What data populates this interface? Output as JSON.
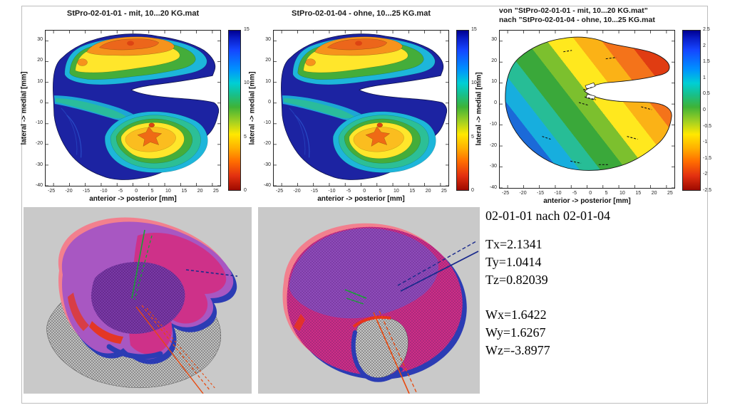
{
  "figure": {
    "plots": [
      {
        "title": "StPro-02-01-01 - mit, 10...20 KG.mat",
        "xlabel": "anterior -> posterior [mm]",
        "ylabel": "lateral -> medial [mm]",
        "x_ticks": [
          "-25",
          "-20",
          "-15",
          "-10",
          "-5",
          "0",
          "5",
          "10",
          "15",
          "20",
          "25"
        ],
        "y_ticks": [
          "30",
          "20",
          "10",
          "0",
          "-10",
          "-20",
          "-30",
          "-40"
        ],
        "cbar_ticks": [
          "15",
          "10",
          "5",
          "0"
        ]
      },
      {
        "title": "StPro-02-01-04 - ohne, 10...25 KG.mat",
        "xlabel": "anterior -> posterior [mm]",
        "ylabel": "lateral -> medial [mm]",
        "x_ticks": [
          "-25",
          "-20",
          "-15",
          "-10",
          "-5",
          "0",
          "5",
          "10",
          "15",
          "20",
          "25"
        ],
        "y_ticks": [
          "30",
          "20",
          "10",
          "0",
          "-10",
          "-20",
          "-30",
          "-40"
        ],
        "cbar_ticks": [
          "15",
          "10",
          "5",
          "0"
        ]
      },
      {
        "title_line1": "von ”StPro-02-01-01 - mit, 10...20 KG.mat”",
        "title_line2": "nach ”StPro-02-01-04 - ohne, 10...25 KG.mat",
        "xlabel": "anterior -> posterior [mm]",
        "ylabel": "lateral -> medial [mm]",
        "x_ticks": [
          "-25",
          "-20",
          "-15",
          "-10",
          "-5",
          "0",
          "5",
          "10",
          "15",
          "20",
          "25"
        ],
        "y_ticks": [
          "30",
          "20",
          "10",
          "0",
          "-10",
          "-20",
          "-30",
          "-40"
        ],
        "cbar_ticks": [
          "2.5",
          "2",
          "1.5",
          "1",
          "0.5",
          "0",
          "-0.5",
          "-1",
          "-1.5",
          "-2",
          "-2.5"
        ]
      }
    ],
    "annotation": {
      "heading": "02-01-01 nach 02-01-04",
      "t_lines": [
        "Tx=2.1341",
        "Ty=1.0414",
        "Tz=0.82039"
      ],
      "w_lines": [
        "Wx=1.6422",
        "Wy=1.6267",
        "Wz=-3.8977"
      ]
    }
  },
  "colors": {
    "panel_background": "#c9c9c9",
    "colormap_high": "#000090",
    "colormap_low": "#9e0a00",
    "mesh_gray": "#555555",
    "overlay_magenta": "#cf2f86",
    "overlay_purple": "#8a4fc0",
    "fringe_pink": "#f2808e",
    "fringe_blue": "#2b3cb4",
    "axis_line_green": "#18a035",
    "axis_line_red": "#e8490f",
    "axis_line_navy": "#1a2a8c"
  },
  "chart_data": [
    {
      "type": "heatmap",
      "subtype": "filled-contour",
      "title": "StPro-02-01-01 - mit, 10...20 KG.mat",
      "xlabel": "anterior -> posterior [mm]",
      "ylabel": "lateral -> medial [mm]",
      "xlim": [
        -27,
        27
      ],
      "ylim": [
        -40,
        35
      ],
      "x_ticks": [
        -25,
        -20,
        -15,
        -10,
        -5,
        0,
        5,
        10,
        15,
        20,
        25
      ],
      "y_ticks": [
        30,
        20,
        10,
        0,
        -10,
        -20,
        -30,
        -40
      ],
      "colorbar": {
        "min": 0,
        "max": 15,
        "ticks": [
          15,
          10,
          5,
          0
        ],
        "orientation": "vertical",
        "colormap": "jet-reversed (blue=high, red=low)"
      },
      "grid": false,
      "legend": "colorbar right",
      "shape": "C-shaped (pac-man) region, notch opening to the right near y=5..10",
      "regions": [
        {
          "area": "upper lobe core (x -12..8, y 22..33)",
          "value_approx": 2,
          "color": "orange-red"
        },
        {
          "area": "upper lobe band (y 10..22)",
          "value_approx": 5,
          "color": "yellow"
        },
        {
          "area": "upper lobe lower band (y 5..12)",
          "value_approx": 7,
          "color": "green"
        },
        {
          "area": "lower lobe hotspot center (x 0..15, y -28..-12)",
          "value_approx": 4,
          "color": "yellow-amber with orange cross core ~2"
        },
        {
          "area": "left and bottom margins, mid-left region",
          "value_approx": 14,
          "color": "dark blue"
        }
      ]
    },
    {
      "type": "heatmap",
      "subtype": "filled-contour",
      "title": "StPro-02-01-04 - ohne, 10...25 KG.mat",
      "xlabel": "anterior -> posterior [mm]",
      "ylabel": "lateral -> medial [mm]",
      "xlim": [
        -27,
        27
      ],
      "ylim": [
        -40,
        35
      ],
      "x_ticks": [
        -25,
        -20,
        -15,
        -10,
        -5,
        0,
        5,
        10,
        15,
        20,
        25
      ],
      "y_ticks": [
        30,
        20,
        10,
        0,
        -10,
        -20,
        -30,
        -40
      ],
      "colorbar": {
        "min": 0,
        "max": 15,
        "ticks": [
          15,
          10,
          5,
          0
        ],
        "orientation": "vertical",
        "colormap": "jet-reversed (blue=high, red=low)"
      },
      "grid": false,
      "shape": "same C-shaped region as plot 1, nearly identical distribution",
      "regions": [
        {
          "area": "upper lobe core",
          "value_approx": 2,
          "color": "orange-red"
        },
        {
          "area": "lower lobe hotspot",
          "value_approx": 4,
          "color": "yellow-amber"
        },
        {
          "area": "margins / mid-left",
          "value_approx": 14,
          "color": "dark blue"
        }
      ]
    },
    {
      "type": "heatmap",
      "subtype": "filled-contour-difference",
      "title": "von ”StPro-02-01-01 - mit, 10...20 KG.mat” nach ”StPro-02-01-04 - ohne, 10...25 KG.mat",
      "xlabel": "anterior -> posterior [mm]",
      "ylabel": "lateral -> medial [mm]",
      "xlim": [
        -27,
        27
      ],
      "ylim": [
        -40,
        35
      ],
      "x_ticks": [
        -25,
        -20,
        -15,
        -10,
        -5,
        0,
        5,
        10,
        15,
        20,
        25
      ],
      "y_ticks": [
        30,
        20,
        10,
        0,
        -10,
        -20,
        -30,
        -40
      ],
      "colorbar": {
        "min": -2.5,
        "max": 2.5,
        "ticks": [
          2.5,
          2,
          1.5,
          1,
          0.5,
          0,
          -0.5,
          -1,
          -1.5,
          -2,
          -2.5
        ],
        "orientation": "vertical",
        "colormap": "jet-reversed (blue=high, red=low)"
      },
      "grid": false,
      "shape": "C-shaped region; diagonal banded gradient",
      "gradient_description": "values increase from lower-left (about -2.2, dark blue) diagonally to upper-right / right tip (about +2.3, red to dark red); center band near 0 is green, top-left yellow-green, black dashed contour fragments near the notch"
    },
    {
      "type": "table",
      "title": "rigid transformation 02-01-01 nach 02-01-04",
      "values": {
        "Tx": 2.1341,
        "Ty": 1.0414,
        "Tz": 0.82039,
        "Wx": 1.6422,
        "Wy": 1.6267,
        "Wz": -3.8977
      }
    }
  ]
}
